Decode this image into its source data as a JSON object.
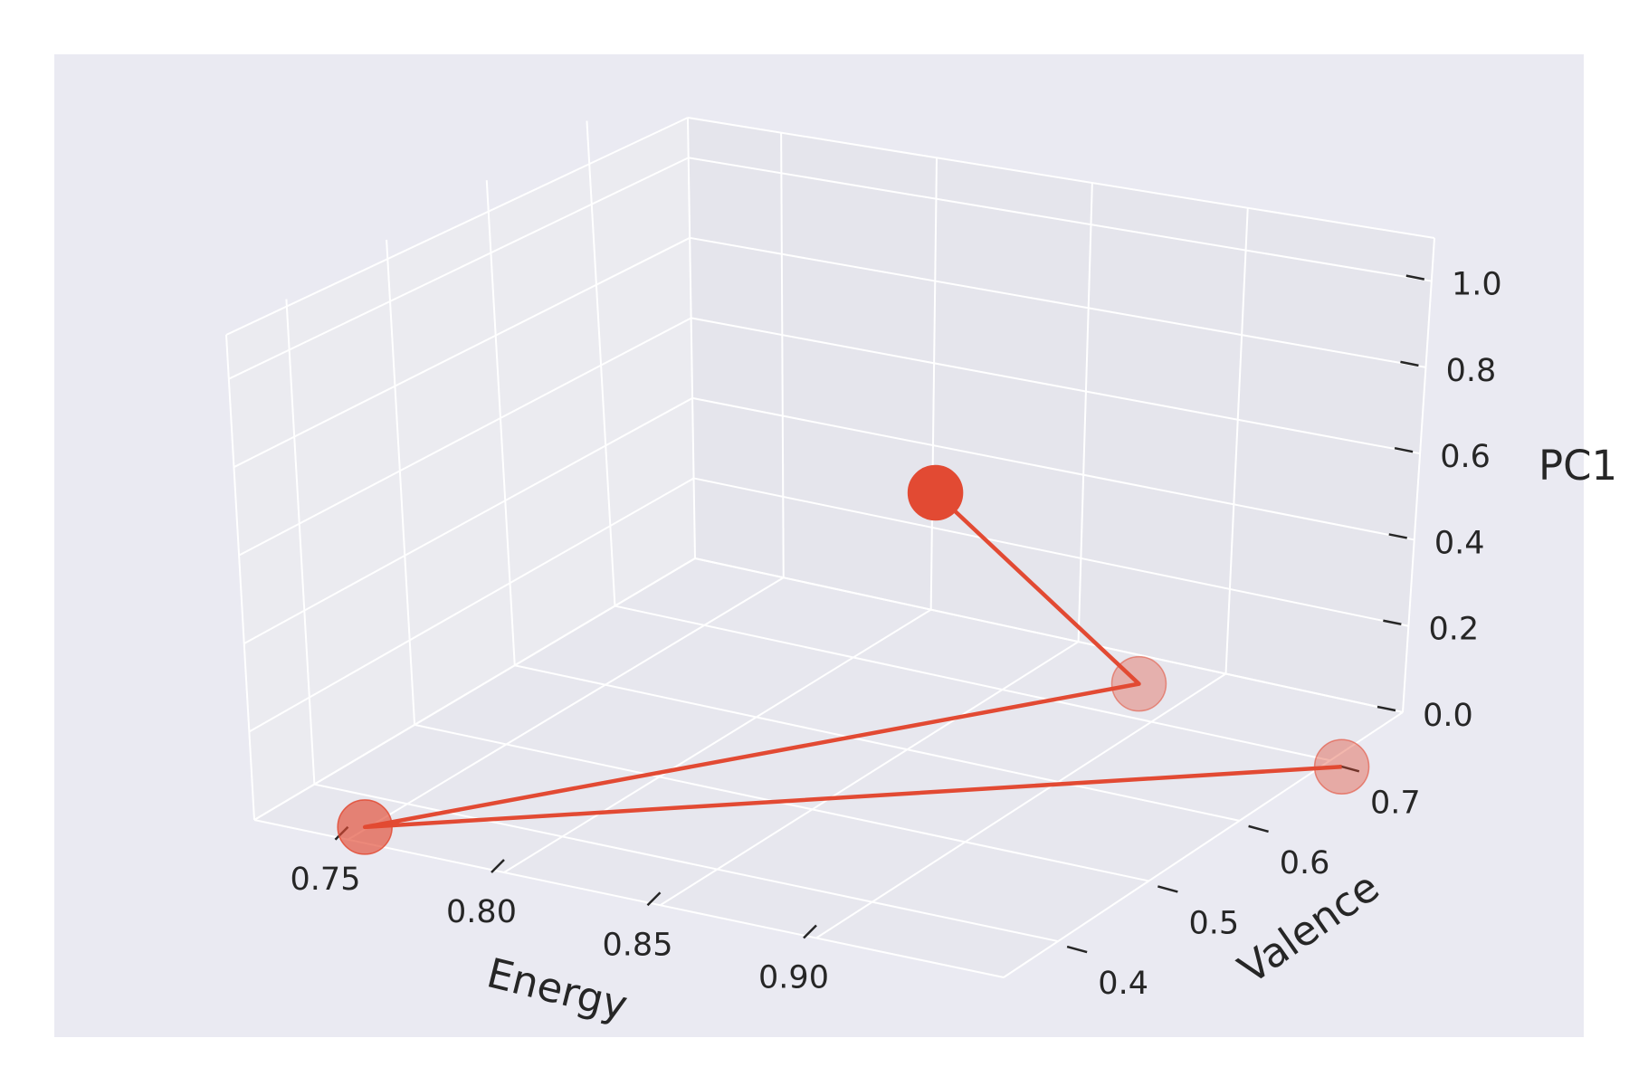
{
  "chart_data": {
    "type": "scatter3d",
    "title": "",
    "xlabel": "Energy",
    "ylabel": "Valence",
    "zlabel": "PC1",
    "x_ticks": [
      "0.75",
      "0.80",
      "0.85",
      "0.90"
    ],
    "y_ticks": [
      "0.4",
      "0.5",
      "0.6",
      "0.7"
    ],
    "z_ticks": [
      "0.0",
      "0.2",
      "0.4",
      "0.6",
      "0.8",
      "1.0"
    ],
    "xlim": [
      0.72,
      0.96
    ],
    "ylim": [
      0.34,
      0.78
    ],
    "zlim": [
      0.0,
      1.1
    ],
    "grid": true,
    "colors": {
      "figure_background": "#ffffff",
      "axes_background": "#eaeaf2",
      "series": "#e24a33"
    },
    "series": [
      {
        "points": [
          {
            "energy": 0.749,
            "valence": 0.36,
            "pc1": 0.0,
            "alpha": 0.65
          },
          {
            "energy": 0.875,
            "valence": 0.74,
            "pc1": 0.0,
            "alpha": 0.35
          },
          {
            "energy": 0.915,
            "valence": 0.39,
            "pc1": 1.0,
            "alpha": 1.0
          },
          {
            "energy": 0.956,
            "valence": 0.69,
            "pc1": 0.0,
            "alpha": 0.4
          }
        ],
        "path_order": [
          2,
          1,
          0,
          3
        ]
      }
    ]
  }
}
